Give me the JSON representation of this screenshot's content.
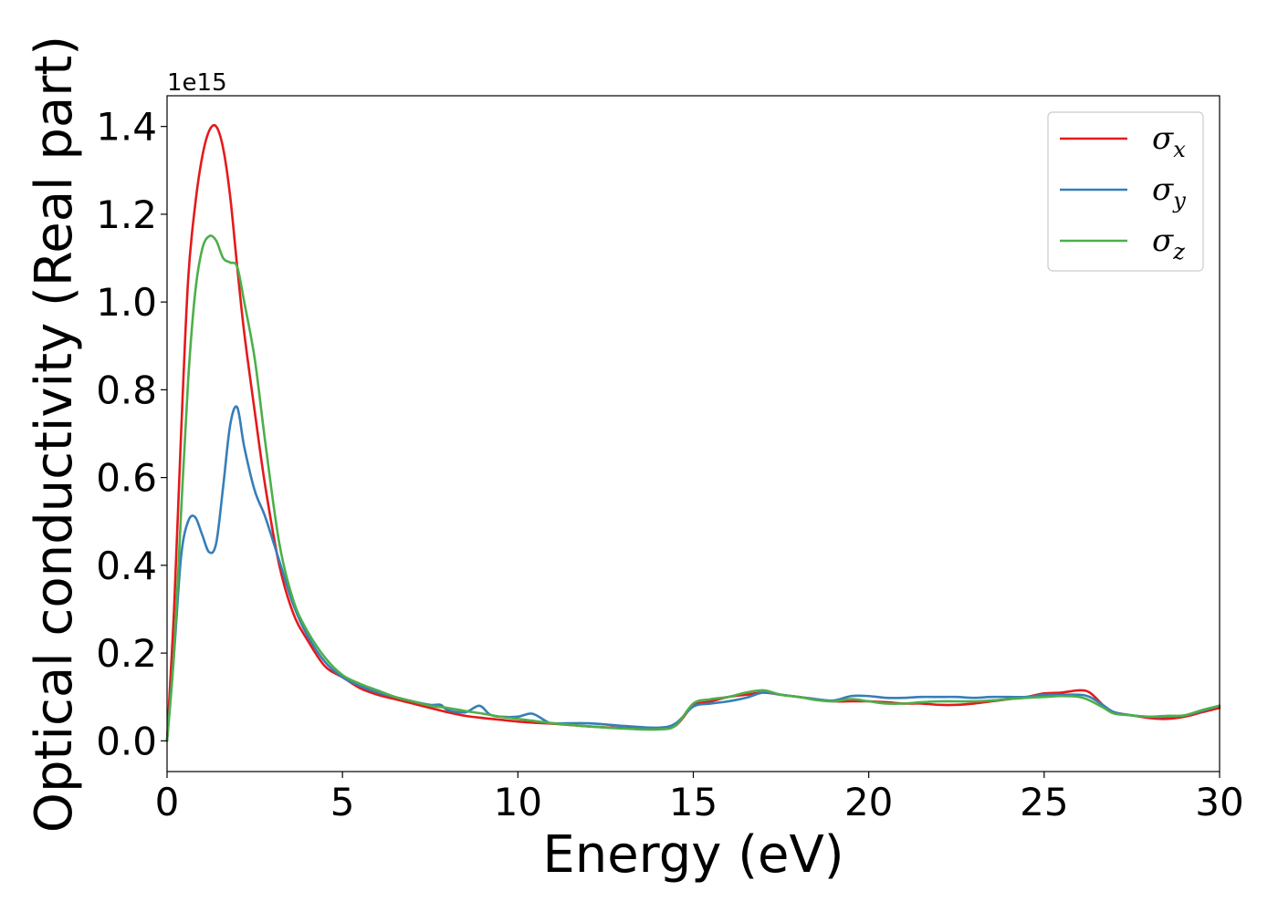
{
  "chart_data": {
    "type": "line",
    "xlabel": "Energy (eV)",
    "ylabel": "Optical conductivity (Real part)",
    "y_offset_label": "1e15",
    "xlim": [
      0,
      30
    ],
    "ylim": [
      -0.07,
      1.47
    ],
    "x_ticks": [
      0,
      5,
      10,
      15,
      20,
      25,
      30
    ],
    "x_tick_labels": [
      "0",
      "5",
      "10",
      "15",
      "20",
      "25",
      "30"
    ],
    "y_ticks": [
      0.0,
      0.2,
      0.4,
      0.6,
      0.8,
      1.0,
      1.2,
      1.4
    ],
    "y_tick_labels": [
      "0.0",
      "0.2",
      "0.4",
      "0.6",
      "0.8",
      "1.0",
      "1.2",
      "1.4"
    ],
    "grid": false,
    "legend_position": "top-right",
    "series": [
      {
        "name": "σx",
        "symbol": "σ",
        "subscript": "x",
        "color": "#e41a1c",
        "x": [
          0,
          0.2,
          0.4,
          0.6,
          0.8,
          1.0,
          1.2,
          1.4,
          1.6,
          1.8,
          2.0,
          2.2,
          2.5,
          2.8,
          3.2,
          3.6,
          4.0,
          4.5,
          5.0,
          5.5,
          6.0,
          6.5,
          7.0,
          7.5,
          8.0,
          8.5,
          9.0,
          9.5,
          10.0,
          10.5,
          11.0,
          12.0,
          13.0,
          14.0,
          14.5,
          15.0,
          15.5,
          16.0,
          16.5,
          17.0,
          17.5,
          18.0,
          18.5,
          19.0,
          19.5,
          20.0,
          20.5,
          21.0,
          21.5,
          22.0,
          22.5,
          23.0,
          23.5,
          24.0,
          24.5,
          25.0,
          25.5,
          26.0,
          26.3,
          26.7,
          27.0,
          27.5,
          28.0,
          28.5,
          29.0,
          29.5,
          30.0
        ],
        "y": [
          0.0,
          0.3,
          0.7,
          1.05,
          1.22,
          1.33,
          1.39,
          1.4,
          1.35,
          1.24,
          1.08,
          0.93,
          0.75,
          0.58,
          0.4,
          0.29,
          0.23,
          0.17,
          0.145,
          0.12,
          0.105,
          0.095,
          0.085,
          0.075,
          0.065,
          0.057,
          0.052,
          0.048,
          0.044,
          0.041,
          0.039,
          0.033,
          0.029,
          0.028,
          0.035,
          0.08,
          0.09,
          0.1,
          0.105,
          0.11,
          0.105,
          0.1,
          0.095,
          0.09,
          0.09,
          0.09,
          0.088,
          0.085,
          0.085,
          0.082,
          0.082,
          0.085,
          0.09,
          0.095,
          0.1,
          0.108,
          0.11,
          0.115,
          0.11,
          0.08,
          0.065,
          0.058,
          0.052,
          0.05,
          0.055,
          0.065,
          0.075
        ]
      },
      {
        "name": "σy",
        "symbol": "σ",
        "subscript": "y",
        "color": "#377eb8",
        "x": [
          0,
          0.2,
          0.4,
          0.6,
          0.8,
          1.0,
          1.2,
          1.4,
          1.6,
          1.8,
          2.0,
          2.2,
          2.5,
          2.8,
          3.2,
          3.6,
          4.0,
          4.5,
          5.0,
          5.5,
          6.0,
          6.5,
          7.0,
          7.5,
          7.8,
          8.0,
          8.5,
          8.9,
          9.2,
          9.5,
          10.0,
          10.4,
          10.8,
          11.0,
          12.0,
          13.0,
          14.0,
          14.5,
          15.0,
          15.5,
          16.0,
          16.5,
          17.0,
          17.5,
          18.0,
          18.5,
          19.0,
          19.5,
          20.0,
          20.5,
          21.0,
          21.5,
          22.0,
          22.5,
          23.0,
          23.5,
          24.0,
          24.5,
          25.0,
          25.5,
          26.0,
          26.3,
          26.7,
          27.0,
          27.5,
          28.0,
          28.5,
          29.0,
          29.5,
          30.0
        ],
        "y": [
          0.0,
          0.2,
          0.42,
          0.5,
          0.51,
          0.47,
          0.43,
          0.45,
          0.58,
          0.72,
          0.76,
          0.67,
          0.57,
          0.51,
          0.41,
          0.31,
          0.24,
          0.18,
          0.145,
          0.125,
          0.11,
          0.1,
          0.09,
          0.082,
          0.082,
          0.07,
          0.065,
          0.08,
          0.06,
          0.055,
          0.055,
          0.062,
          0.045,
          0.04,
          0.04,
          0.034,
          0.03,
          0.04,
          0.078,
          0.085,
          0.09,
          0.098,
          0.11,
          0.105,
          0.1,
          0.095,
          0.092,
          0.102,
          0.102,
          0.098,
          0.098,
          0.1,
          0.1,
          0.1,
          0.098,
          0.1,
          0.1,
          0.1,
          0.105,
          0.105,
          0.105,
          0.1,
          0.08,
          0.065,
          0.058,
          0.055,
          0.055,
          0.058,
          0.068,
          0.08
        ]
      },
      {
        "name": "σz",
        "symbol": "σ",
        "subscript": "z",
        "color": "#4daf4a",
        "x": [
          0,
          0.2,
          0.4,
          0.6,
          0.8,
          1.0,
          1.2,
          1.4,
          1.6,
          1.8,
          2.0,
          2.2,
          2.5,
          2.8,
          3.2,
          3.6,
          4.0,
          4.5,
          5.0,
          5.5,
          6.0,
          6.5,
          7.0,
          7.5,
          8.0,
          8.5,
          9.0,
          9.5,
          10.0,
          10.5,
          11.0,
          12.0,
          13.0,
          14.0,
          14.5,
          15.0,
          15.5,
          16.0,
          16.5,
          17.0,
          17.5,
          18.0,
          18.5,
          19.0,
          19.5,
          20.0,
          20.5,
          21.0,
          21.5,
          22.0,
          22.5,
          23.0,
          23.5,
          24.0,
          24.5,
          25.0,
          25.5,
          26.0,
          26.3,
          26.7,
          27.0,
          27.5,
          28.0,
          28.5,
          29.0,
          29.5,
          30.0
        ],
        "y": [
          0.0,
          0.2,
          0.52,
          0.82,
          1.02,
          1.12,
          1.15,
          1.14,
          1.1,
          1.09,
          1.08,
          1.0,
          0.87,
          0.68,
          0.45,
          0.32,
          0.25,
          0.19,
          0.15,
          0.13,
          0.115,
          0.1,
          0.09,
          0.08,
          0.075,
          0.068,
          0.062,
          0.055,
          0.05,
          0.045,
          0.04,
          0.033,
          0.028,
          0.026,
          0.035,
          0.085,
          0.095,
          0.1,
          0.11,
          0.115,
          0.105,
          0.1,
          0.093,
          0.09,
          0.095,
          0.09,
          0.085,
          0.085,
          0.088,
          0.09,
          0.09,
          0.09,
          0.092,
          0.095,
          0.098,
          0.1,
          0.102,
          0.1,
          0.092,
          0.075,
          0.062,
          0.058,
          0.055,
          0.057,
          0.058,
          0.07,
          0.08
        ]
      }
    ]
  }
}
